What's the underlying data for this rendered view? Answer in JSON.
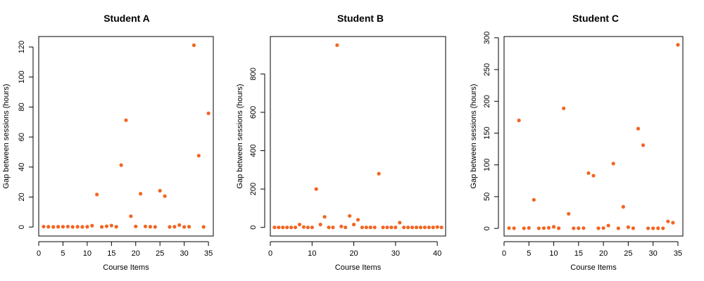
{
  "colors": {
    "point": "#F26522",
    "axis": "#000000",
    "background": "#FFFFFF"
  },
  "chart_data": [
    {
      "type": "scatter",
      "title": "Student A",
      "xlabel": "Course Items",
      "ylabel": "Gap between sessions (hours)",
      "xlim": [
        0,
        36
      ],
      "ylim": [
        -6,
        127
      ],
      "xticks": [
        0,
        5,
        10,
        15,
        20,
        25,
        30,
        35
      ],
      "yticks": [
        0,
        20,
        40,
        60,
        80,
        100,
        120
      ],
      "grid": false,
      "x": [
        1,
        2,
        3,
        4,
        5,
        6,
        7,
        8,
        9,
        10,
        11,
        12,
        13,
        14,
        15,
        16,
        17,
        18,
        19,
        20,
        21,
        22,
        23,
        24,
        25,
        26,
        27,
        28,
        29,
        30,
        31,
        32,
        33,
        34,
        35
      ],
      "y": [
        0.3,
        0.2,
        0.1,
        0.2,
        0.2,
        0.3,
        0.1,
        0.2,
        0.1,
        0.2,
        0.9,
        21.7,
        0.1,
        0.5,
        1.0,
        0.2,
        41.3,
        71.2,
        7.2,
        0.4,
        22.2,
        0.4,
        0.2,
        0.1,
        24.2,
        20.6,
        0.1,
        0.2,
        1.3,
        0.1,
        0.2,
        121.2,
        47.6,
        0.1,
        75.8
      ]
    },
    {
      "type": "scatter",
      "title": "Student B",
      "xlabel": "Course Items",
      "ylabel": "Gap between sessions (hours)",
      "xlim": [
        0,
        42
      ],
      "ylim": [
        -45,
        995
      ],
      "xticks": [
        0,
        10,
        20,
        30,
        40
      ],
      "yticks": [
        0,
        200,
        400,
        600,
        800
      ],
      "grid": false,
      "x": [
        1,
        2,
        3,
        4,
        5,
        6,
        7,
        8,
        9,
        10,
        11,
        12,
        13,
        14,
        15,
        16,
        17,
        18,
        19,
        20,
        21,
        22,
        23,
        24,
        25,
        26,
        27,
        28,
        29,
        30,
        31,
        32,
        33,
        34,
        35,
        36,
        37,
        38,
        39,
        40,
        41
      ],
      "y": [
        0,
        0,
        0,
        0,
        0,
        0,
        15,
        2,
        0,
        0,
        200,
        15,
        55,
        0,
        0,
        950,
        5,
        0,
        60,
        15,
        40,
        0,
        0,
        0,
        0,
        280,
        0,
        0,
        0,
        0,
        25,
        0,
        0,
        0,
        0,
        0,
        0,
        0,
        0,
        2,
        0
      ]
    },
    {
      "type": "scatter",
      "title": "Student C",
      "xlabel": "Course Items",
      "ylabel": "Gap between sessions (hours)",
      "xlim": [
        0,
        36
      ],
      "ylim": [
        -12,
        302
      ],
      "xticks": [
        0,
        5,
        10,
        15,
        20,
        25,
        30,
        35
      ],
      "yticks": [
        0,
        50,
        100,
        150,
        200,
        250,
        300
      ],
      "grid": false,
      "x": [
        1,
        2,
        3,
        4,
        5,
        6,
        7,
        8,
        9,
        10,
        11,
        12,
        13,
        14,
        15,
        16,
        17,
        18,
        19,
        20,
        21,
        22,
        23,
        24,
        25,
        26,
        27,
        28,
        29,
        30,
        31,
        32,
        33,
        34,
        35
      ],
      "y": [
        0.5,
        0.3,
        170,
        0.2,
        0.8,
        45,
        0.2,
        0.5,
        1,
        2.5,
        0.3,
        189,
        23,
        0.2,
        0.3,
        0.5,
        87,
        83,
        0.3,
        0.5,
        4.5,
        102,
        0.2,
        34,
        2,
        0.3,
        157,
        131,
        0.2,
        0.2,
        0.3,
        0.2,
        11,
        9,
        289
      ]
    }
  ]
}
